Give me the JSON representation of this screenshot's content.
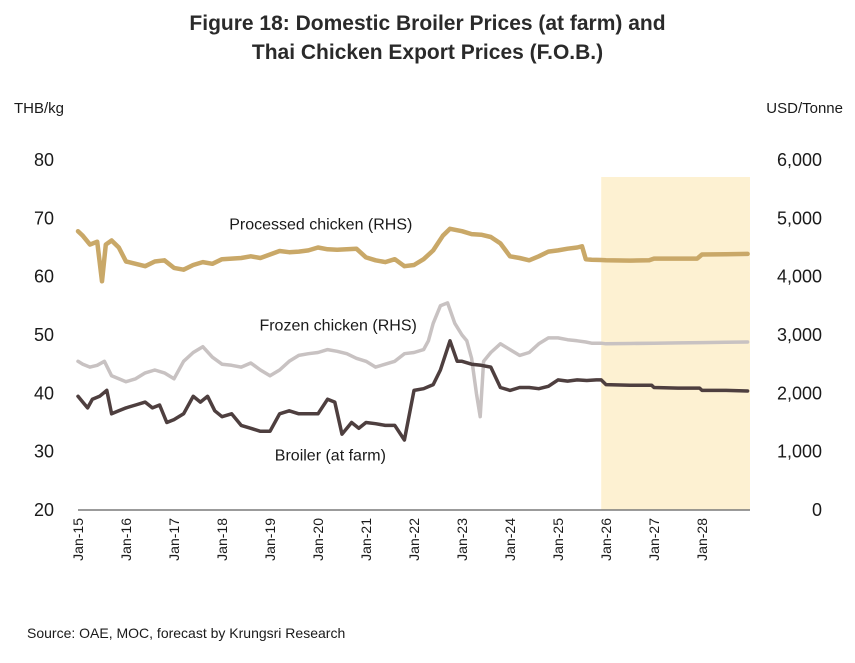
{
  "chart_data": {
    "type": "line",
    "title": "Figure 18: Domestic Broiler Prices (at farm) and",
    "title_line2": "Thai Chicken Export Prices (F.O.B.)",
    "ylabel_left": "THB/kg",
    "ylabel_right": "USD/Tonne",
    "ylim_left": [
      20,
      80
    ],
    "ylim_right": [
      0,
      6000
    ],
    "yticks_left": [
      "80",
      "70",
      "60",
      "50",
      "40",
      "30",
      "20"
    ],
    "yticks_right": [
      "6,000",
      "5,000",
      "4,000",
      "3,000",
      "2,000",
      "1,000",
      "0"
    ],
    "x_range": [
      2015.0,
      2029.0
    ],
    "x_tick_labels": [
      "Jan-15",
      "Jan-16",
      "Jan-17",
      "Jan-18",
      "Jan-19",
      "Jan-20",
      "Jan-21",
      "Jan-22",
      "Jan-23",
      "Jan-24",
      "Jan-25",
      "Jan-26",
      "Jan-27",
      "Jan-28"
    ],
    "forecast_start": 2025.9,
    "forecast_color": "#fdf1d2",
    "series": [
      {
        "name": "Processed chicken (RHS)",
        "axis": "right",
        "color": "#c9a868",
        "label_at": [
          2018.15,
          4810
        ],
        "points": [
          [
            2015.0,
            4780
          ],
          [
            2015.1,
            4700
          ],
          [
            2015.25,
            4550
          ],
          [
            2015.4,
            4600
          ],
          [
            2015.5,
            3920
          ],
          [
            2015.58,
            4550
          ],
          [
            2015.7,
            4620
          ],
          [
            2015.85,
            4500
          ],
          [
            2016.0,
            4260
          ],
          [
            2016.2,
            4220
          ],
          [
            2016.4,
            4180
          ],
          [
            2016.6,
            4260
          ],
          [
            2016.8,
            4280
          ],
          [
            2017.0,
            4150
          ],
          [
            2017.2,
            4120
          ],
          [
            2017.4,
            4200
          ],
          [
            2017.6,
            4250
          ],
          [
            2017.8,
            4220
          ],
          [
            2018.0,
            4300
          ],
          [
            2018.2,
            4310
          ],
          [
            2018.4,
            4320
          ],
          [
            2018.6,
            4350
          ],
          [
            2018.8,
            4320
          ],
          [
            2019.0,
            4380
          ],
          [
            2019.2,
            4440
          ],
          [
            2019.4,
            4420
          ],
          [
            2019.6,
            4430
          ],
          [
            2019.8,
            4450
          ],
          [
            2020.0,
            4500
          ],
          [
            2020.2,
            4470
          ],
          [
            2020.4,
            4460
          ],
          [
            2020.6,
            4470
          ],
          [
            2020.8,
            4480
          ],
          [
            2021.0,
            4330
          ],
          [
            2021.2,
            4280
          ],
          [
            2021.4,
            4250
          ],
          [
            2021.6,
            4300
          ],
          [
            2021.8,
            4180
          ],
          [
            2022.0,
            4200
          ],
          [
            2022.2,
            4300
          ],
          [
            2022.4,
            4450
          ],
          [
            2022.6,
            4700
          ],
          [
            2022.75,
            4820
          ],
          [
            2023.0,
            4780
          ],
          [
            2023.2,
            4730
          ],
          [
            2023.4,
            4720
          ],
          [
            2023.6,
            4680
          ],
          [
            2023.8,
            4570
          ],
          [
            2024.0,
            4350
          ],
          [
            2024.2,
            4320
          ],
          [
            2024.4,
            4280
          ],
          [
            2024.6,
            4350
          ],
          [
            2024.8,
            4430
          ],
          [
            2025.0,
            4450
          ],
          [
            2025.2,
            4480
          ],
          [
            2025.4,
            4500
          ],
          [
            2025.5,
            4520
          ],
          [
            2025.58,
            4300
          ],
          [
            2025.7,
            4290
          ],
          [
            2025.9,
            4285
          ],
          [
            2026.0,
            4280
          ],
          [
            2026.5,
            4275
          ],
          [
            2026.9,
            4280
          ],
          [
            2027.0,
            4310
          ],
          [
            2027.5,
            4310
          ],
          [
            2027.9,
            4310
          ],
          [
            2028.0,
            4380
          ],
          [
            2028.5,
            4385
          ],
          [
            2028.95,
            4390
          ]
        ]
      },
      {
        "name": "Frozen chicken (RHS)",
        "axis": "right",
        "color": "#c8c2c2",
        "label_at": [
          2018.78,
          3080
        ],
        "points": [
          [
            2015.0,
            2550
          ],
          [
            2015.1,
            2500
          ],
          [
            2015.25,
            2450
          ],
          [
            2015.4,
            2480
          ],
          [
            2015.55,
            2550
          ],
          [
            2015.7,
            2300
          ],
          [
            2015.85,
            2250
          ],
          [
            2016.0,
            2200
          ],
          [
            2016.2,
            2250
          ],
          [
            2016.4,
            2350
          ],
          [
            2016.6,
            2400
          ],
          [
            2016.8,
            2350
          ],
          [
            2017.0,
            2250
          ],
          [
            2017.2,
            2550
          ],
          [
            2017.4,
            2700
          ],
          [
            2017.6,
            2800
          ],
          [
            2017.8,
            2620
          ],
          [
            2018.0,
            2500
          ],
          [
            2018.2,
            2480
          ],
          [
            2018.4,
            2450
          ],
          [
            2018.6,
            2520
          ],
          [
            2018.8,
            2400
          ],
          [
            2019.0,
            2300
          ],
          [
            2019.2,
            2400
          ],
          [
            2019.4,
            2550
          ],
          [
            2019.6,
            2650
          ],
          [
            2019.8,
            2680
          ],
          [
            2020.0,
            2700
          ],
          [
            2020.2,
            2750
          ],
          [
            2020.4,
            2720
          ],
          [
            2020.6,
            2680
          ],
          [
            2020.8,
            2600
          ],
          [
            2021.0,
            2550
          ],
          [
            2021.2,
            2450
          ],
          [
            2021.4,
            2500
          ],
          [
            2021.6,
            2550
          ],
          [
            2021.8,
            2680
          ],
          [
            2022.0,
            2700
          ],
          [
            2022.2,
            2750
          ],
          [
            2022.3,
            2900
          ],
          [
            2022.4,
            3200
          ],
          [
            2022.55,
            3500
          ],
          [
            2022.7,
            3550
          ],
          [
            2022.85,
            3200
          ],
          [
            2023.0,
            3000
          ],
          [
            2023.1,
            2900
          ],
          [
            2023.2,
            2600
          ],
          [
            2023.3,
            2000
          ],
          [
            2023.38,
            1600
          ],
          [
            2023.45,
            2550
          ],
          [
            2023.6,
            2700
          ],
          [
            2023.8,
            2850
          ],
          [
            2024.0,
            2750
          ],
          [
            2024.2,
            2650
          ],
          [
            2024.4,
            2700
          ],
          [
            2024.6,
            2850
          ],
          [
            2024.8,
            2950
          ],
          [
            2025.0,
            2950
          ],
          [
            2025.2,
            2920
          ],
          [
            2025.4,
            2900
          ],
          [
            2025.58,
            2880
          ],
          [
            2025.7,
            2860
          ],
          [
            2025.9,
            2860
          ],
          [
            2026.0,
            2850
          ],
          [
            2026.5,
            2855
          ],
          [
            2027.0,
            2860
          ],
          [
            2027.5,
            2865
          ],
          [
            2028.0,
            2870
          ],
          [
            2028.5,
            2875
          ],
          [
            2028.95,
            2880
          ]
        ]
      },
      {
        "name": "Broiler (at farm)",
        "axis": "left",
        "color": "#4e3f3f",
        "label_at": [
          2019.1,
          28.5
        ],
        "points": [
          [
            2015.0,
            39.5
          ],
          [
            2015.1,
            38.5
          ],
          [
            2015.2,
            37.5
          ],
          [
            2015.3,
            39.0
          ],
          [
            2015.45,
            39.5
          ],
          [
            2015.6,
            40.5
          ],
          [
            2015.7,
            36.5
          ],
          [
            2015.85,
            37.0
          ],
          [
            2016.0,
            37.5
          ],
          [
            2016.2,
            38.0
          ],
          [
            2016.4,
            38.5
          ],
          [
            2016.55,
            37.5
          ],
          [
            2016.7,
            38.0
          ],
          [
            2016.85,
            35.0
          ],
          [
            2017.0,
            35.5
          ],
          [
            2017.2,
            36.5
          ],
          [
            2017.4,
            39.5
          ],
          [
            2017.55,
            38.5
          ],
          [
            2017.7,
            39.5
          ],
          [
            2017.85,
            37.0
          ],
          [
            2018.0,
            36.0
          ],
          [
            2018.2,
            36.5
          ],
          [
            2018.4,
            34.5
          ],
          [
            2018.6,
            34.0
          ],
          [
            2018.8,
            33.5
          ],
          [
            2019.0,
            33.5
          ],
          [
            2019.2,
            36.5
          ],
          [
            2019.4,
            37.0
          ],
          [
            2019.6,
            36.5
          ],
          [
            2019.8,
            36.5
          ],
          [
            2020.0,
            36.5
          ],
          [
            2020.2,
            39.0
          ],
          [
            2020.35,
            38.5
          ],
          [
            2020.5,
            33.0
          ],
          [
            2020.7,
            35.0
          ],
          [
            2020.85,
            34.0
          ],
          [
            2021.0,
            35.0
          ],
          [
            2021.2,
            34.8
          ],
          [
            2021.4,
            34.5
          ],
          [
            2021.6,
            34.5
          ],
          [
            2021.8,
            32.0
          ],
          [
            2022.0,
            40.5
          ],
          [
            2022.2,
            40.8
          ],
          [
            2022.4,
            41.5
          ],
          [
            2022.55,
            44.0
          ],
          [
            2022.75,
            49.0
          ],
          [
            2022.9,
            45.5
          ],
          [
            2023.0,
            45.5
          ],
          [
            2023.2,
            45.0
          ],
          [
            2023.4,
            44.8
          ],
          [
            2023.6,
            44.5
          ],
          [
            2023.8,
            41.0
          ],
          [
            2024.0,
            40.5
          ],
          [
            2024.2,
            41.0
          ],
          [
            2024.4,
            41.0
          ],
          [
            2024.6,
            40.8
          ],
          [
            2024.8,
            41.2
          ],
          [
            2025.0,
            42.3
          ],
          [
            2025.2,
            42.1
          ],
          [
            2025.4,
            42.3
          ],
          [
            2025.6,
            42.2
          ],
          [
            2025.8,
            42.3
          ],
          [
            2025.9,
            42.3
          ],
          [
            2026.0,
            41.5
          ],
          [
            2026.5,
            41.4
          ],
          [
            2026.95,
            41.4
          ],
          [
            2027.0,
            41.0
          ],
          [
            2027.5,
            40.9
          ],
          [
            2027.95,
            40.9
          ],
          [
            2028.0,
            40.5
          ],
          [
            2028.5,
            40.5
          ],
          [
            2028.95,
            40.4
          ]
        ]
      }
    ]
  },
  "source": "Source: OAE, MOC, forecast by Krungsri Research"
}
